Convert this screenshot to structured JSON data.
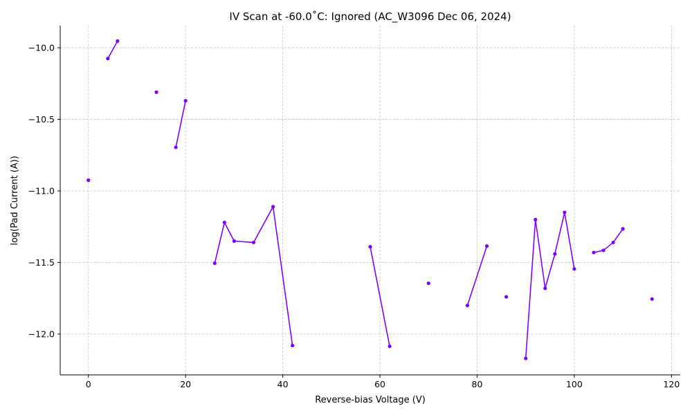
{
  "chart_data": {
    "type": "line",
    "title": "IV Scan at -60.0˚C: Ignored (AC_W3096 Dec 06, 2024)",
    "xlabel": "Reverse-bias Voltage (V)",
    "ylabel": "log(Pad Current (A))",
    "xlim": [
      -5.8,
      121.8
    ],
    "ylim": [
      -12.285,
      -9.845
    ],
    "xticks": [
      0,
      20,
      40,
      60,
      80,
      100,
      120
    ],
    "yticks": [
      -10.0,
      -10.5,
      -11.0,
      -11.5,
      -12.0
    ],
    "xtick_labels": [
      "0",
      "20",
      "40",
      "60",
      "80",
      "100",
      "120"
    ],
    "ytick_labels": [
      "−10.0",
      "−10.5",
      "−11.0",
      "−11.5",
      "−12.0"
    ],
    "grid": true,
    "line_color": "#8000ff",
    "series": [
      {
        "segments": [
          [
            [
              0,
              -10.925
            ]
          ],
          [
            [
              4,
              -10.075
            ],
            [
              6,
              -9.953
            ]
          ],
          [
            [
              14,
              -10.31
            ]
          ],
          [
            [
              18,
              -10.695
            ],
            [
              20,
              -10.37
            ]
          ],
          [
            [
              26,
              -11.505
            ],
            [
              28,
              -11.22
            ],
            [
              30,
              -11.35
            ],
            [
              34,
              -11.36
            ],
            [
              38,
              -11.11
            ],
            [
              42,
              -12.08
            ]
          ],
          [
            [
              58,
              -11.39
            ],
            [
              62,
              -12.085
            ]
          ],
          [
            [
              70,
              -11.645
            ]
          ],
          [
            [
              78,
              -11.8
            ],
            [
              82,
              -11.385
            ]
          ],
          [
            [
              86,
              -11.74
            ]
          ],
          [
            [
              90,
              -12.17
            ],
            [
              92,
              -11.2
            ],
            [
              94,
              -11.68
            ],
            [
              96,
              -11.44
            ],
            [
              98,
              -11.15
            ],
            [
              100,
              -11.545
            ]
          ],
          [
            [
              104,
              -11.43
            ],
            [
              106,
              -11.415
            ],
            [
              108,
              -11.36
            ],
            [
              110,
              -11.265
            ]
          ],
          [
            [
              116,
              -11.755
            ]
          ]
        ]
      }
    ]
  }
}
